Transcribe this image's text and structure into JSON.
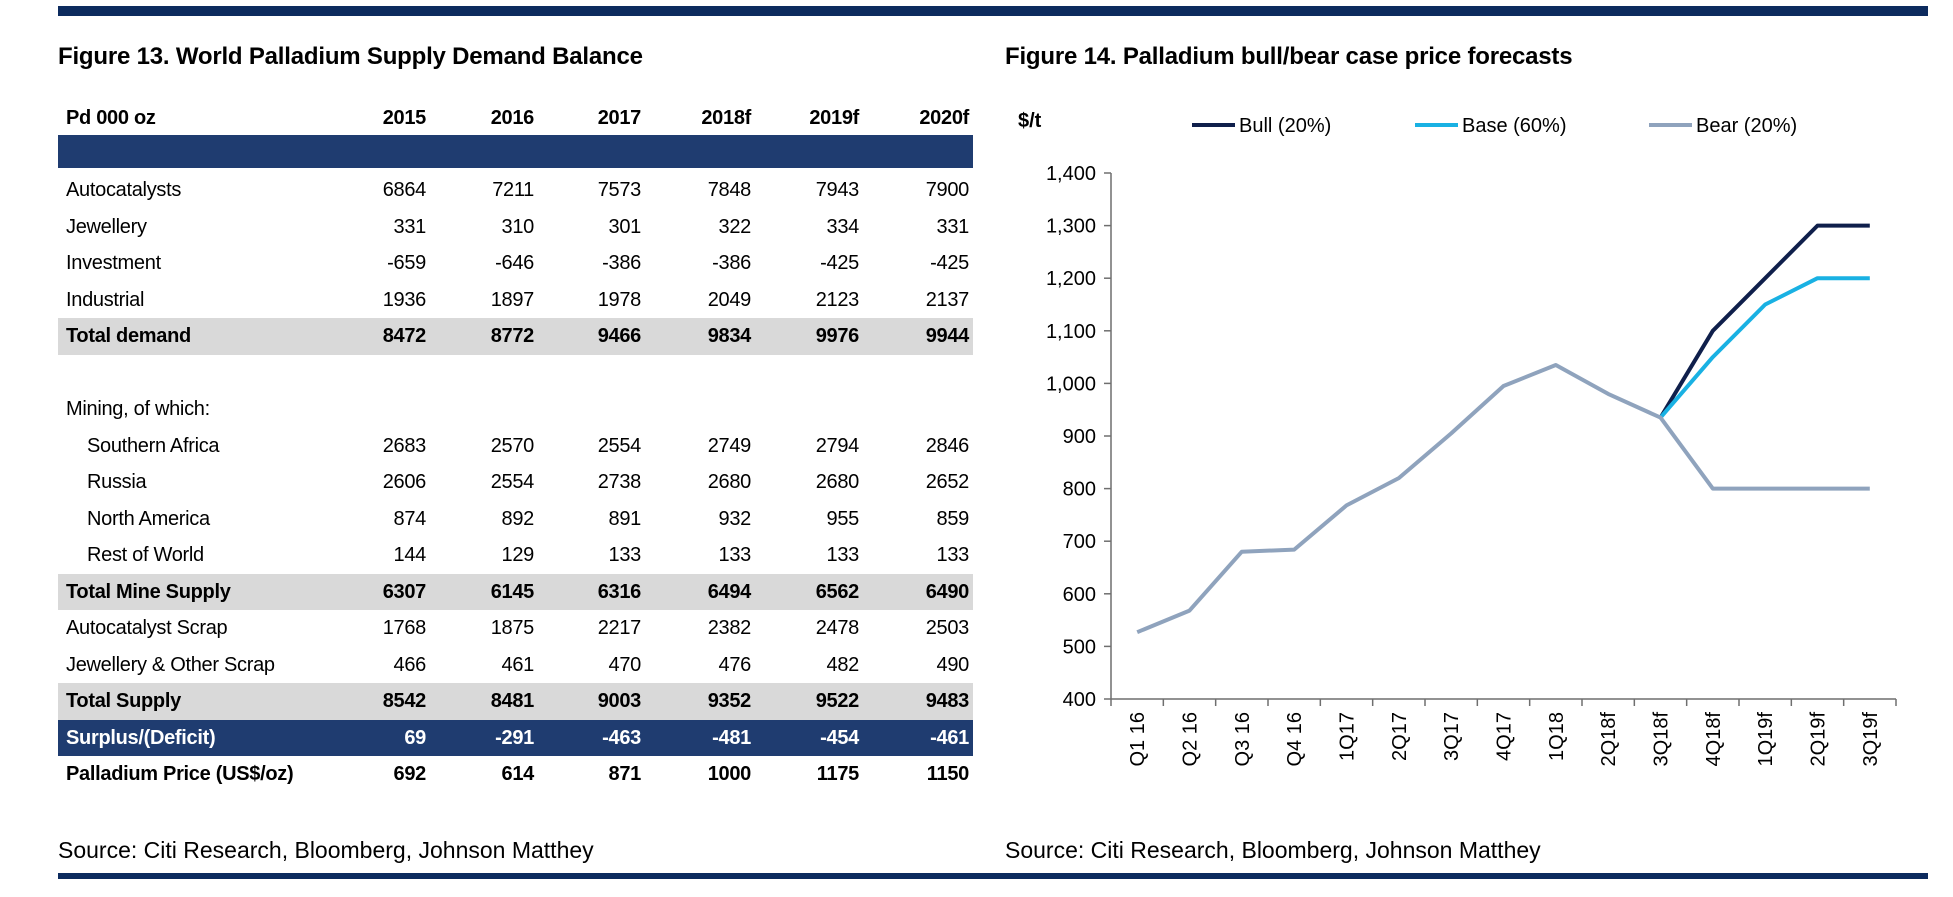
{
  "figure13": {
    "title": "Figure 13. World Palladium Supply Demand Balance",
    "unit_label": "Pd 000 oz",
    "columns": [
      "2015",
      "2016",
      "2017",
      "2018f",
      "2019f",
      "2020f"
    ],
    "rows": [
      {
        "label": "Autocatalysts",
        "values": [
          6864,
          7211,
          7573,
          7848,
          7943,
          7900
        ]
      },
      {
        "label": "Jewellery",
        "values": [
          331,
          310,
          301,
          322,
          334,
          331
        ]
      },
      {
        "label": "Investment",
        "values": [
          -659,
          -646,
          -386,
          -386,
          -425,
          -425
        ]
      },
      {
        "label": "Industrial",
        "values": [
          1936,
          1897,
          1978,
          2049,
          2123,
          2137
        ]
      },
      {
        "label": "Total demand",
        "values": [
          8472,
          8772,
          9466,
          9834,
          9976,
          9944
        ]
      },
      {
        "label": "Mining, of which:",
        "values": []
      },
      {
        "label": "Southern Africa",
        "values": [
          2683,
          2570,
          2554,
          2749,
          2794,
          2846
        ]
      },
      {
        "label": "Russia",
        "values": [
          2606,
          2554,
          2738,
          2680,
          2680,
          2652
        ]
      },
      {
        "label": "North America",
        "values": [
          874,
          892,
          891,
          932,
          955,
          859
        ]
      },
      {
        "label": "Rest of World",
        "values": [
          144,
          129,
          133,
          133,
          133,
          133
        ]
      },
      {
        "label": "Total Mine Supply",
        "values": [
          6307,
          6145,
          6316,
          6494,
          6562,
          6490
        ]
      },
      {
        "label": "Autocatalyst Scrap",
        "values": [
          1768,
          1875,
          2217,
          2382,
          2478,
          2503
        ]
      },
      {
        "label": "Jewellery & Other Scrap",
        "values": [
          466,
          461,
          470,
          476,
          482,
          490
        ]
      },
      {
        "label": "Total Supply",
        "values": [
          8542,
          8481,
          9003,
          9352,
          9522,
          9483
        ]
      },
      {
        "label": "Surplus/(Deficit)",
        "values": [
          69,
          -291,
          -463,
          -481,
          -454,
          -461
        ]
      },
      {
        "label": "Palladium Price (US$/oz)",
        "values": [
          692,
          614,
          871,
          1000,
          1175,
          1150
        ]
      }
    ],
    "source": "Source: Citi Research, Bloomberg, Johnson Matthey"
  },
  "chart_data": {
    "type": "line",
    "title": "Figure 14. Palladium bull/bear case price forecasts",
    "xlabel": "",
    "ylabel": "$/t",
    "ylim": [
      400,
      1400
    ],
    "yticks": [
      "400",
      "500",
      "600",
      "700",
      "800",
      "900",
      "1,000",
      "1,100",
      "1,200",
      "1,300",
      "1,400"
    ],
    "categories": [
      "Q1 16",
      "Q2 16",
      "Q3 16",
      "Q4 16",
      "1Q17",
      "2Q17",
      "3Q17",
      "4Q17",
      "1Q18",
      "2Q18f",
      "3Q18f",
      "4Q18f",
      "1Q19f",
      "2Q19f",
      "3Q19f"
    ],
    "series": [
      {
        "name": "Bull (20%)",
        "color": "#0f1f4b",
        "values": [
          null,
          null,
          null,
          null,
          null,
          null,
          null,
          null,
          null,
          null,
          935,
          1100,
          1200,
          1300,
          1300
        ]
      },
      {
        "name": "Base (60%)",
        "color": "#19b1e3",
        "values": [
          null,
          null,
          null,
          null,
          null,
          null,
          null,
          null,
          null,
          null,
          935,
          1050,
          1150,
          1200,
          1200
        ]
      },
      {
        "name": "Bear (20%)",
        "color": "#8fa3bd",
        "values": [
          527,
          568,
          680,
          684,
          768,
          820,
          905,
          995,
          1035,
          980,
          935,
          800,
          800,
          800,
          800
        ]
      }
    ],
    "legend": "top",
    "grid": false,
    "source": "Source: Citi Research, Bloomberg, Johnson Matthey"
  }
}
